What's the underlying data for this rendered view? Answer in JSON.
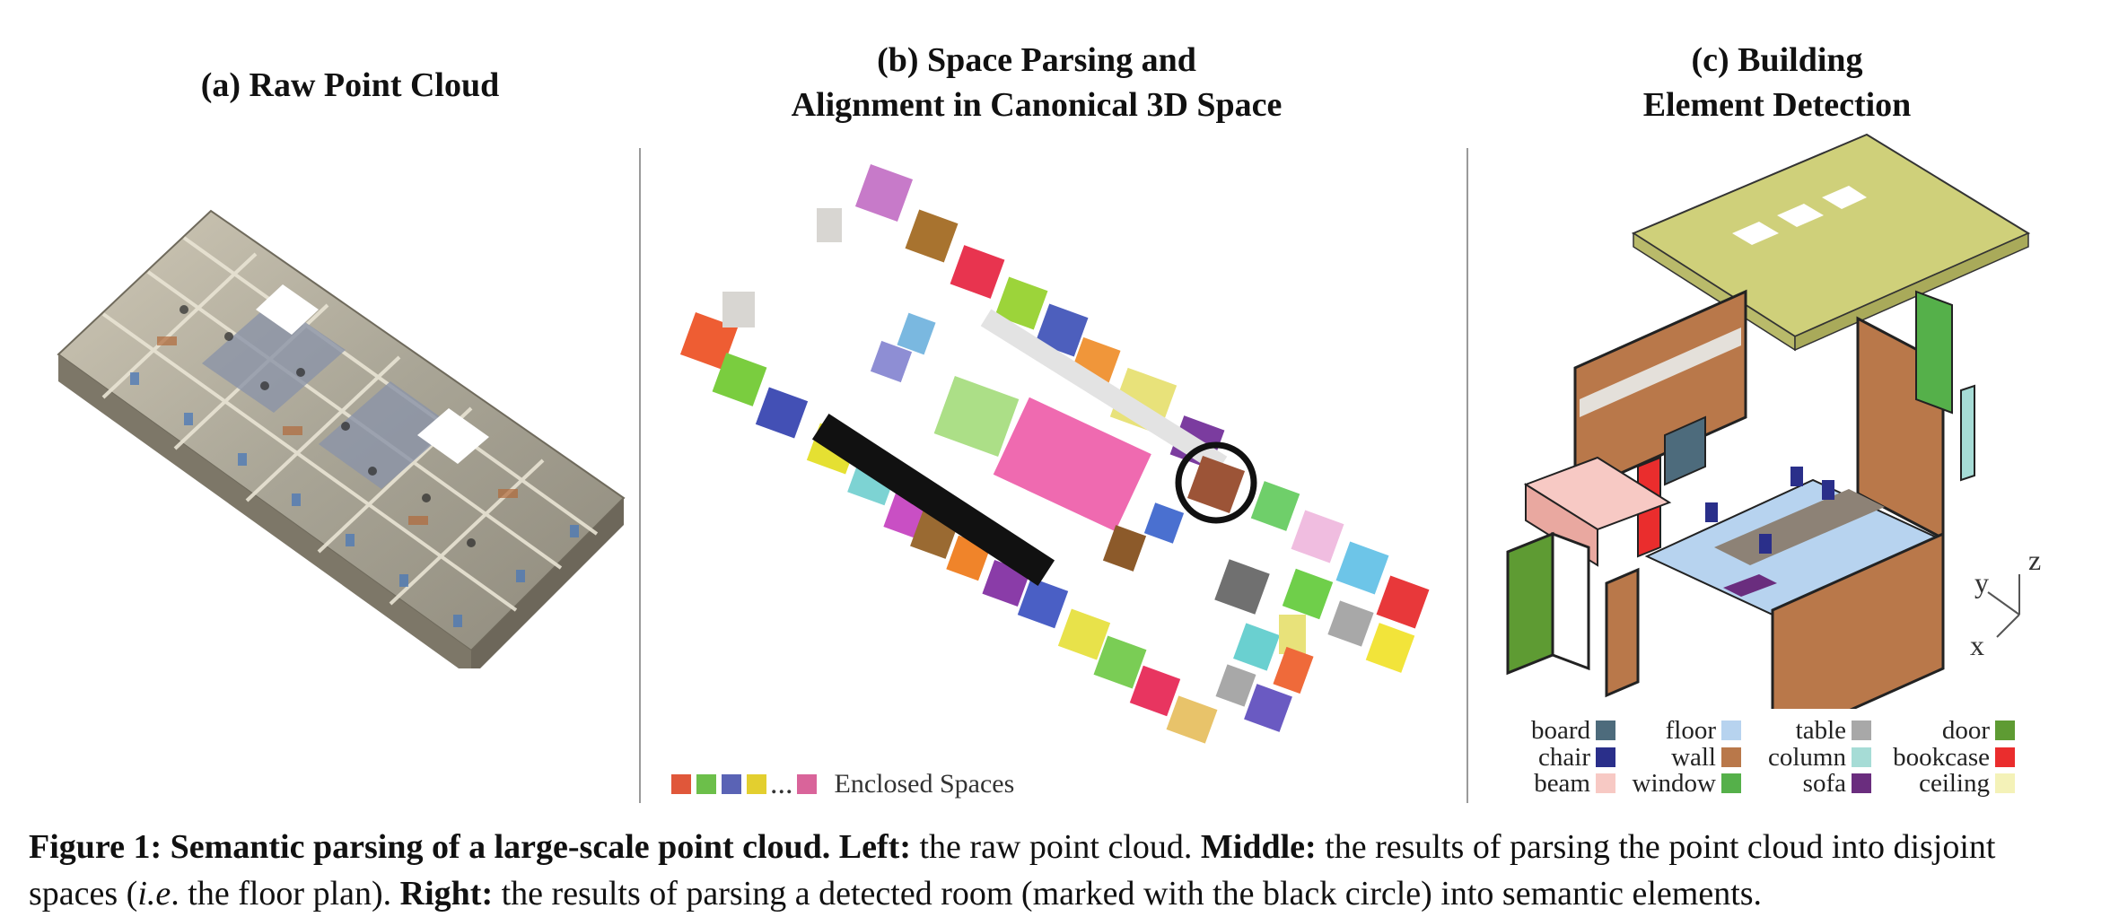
{
  "panels": {
    "a": {
      "title_line1": "(a) Raw Point Cloud"
    },
    "b": {
      "title_line1": "(b) Space Parsing and",
      "title_line2": "Alignment in Canonical 3D Space"
    },
    "c": {
      "title_line1": "(c) Building",
      "title_line2": "Element Detection"
    }
  },
  "enclosed_legend": {
    "label": "Enclosed Spaces",
    "ellipsis": "...",
    "colors": [
      "#e0573a",
      "#6cbf4a",
      "#5a63b5",
      "#e3cf2f",
      "#d9649a"
    ]
  },
  "axes": {
    "x": "x",
    "y": "y",
    "z": "z"
  },
  "element_legend": [
    {
      "label": "board",
      "color": "#4d6b7c"
    },
    {
      "label": "chair",
      "color": "#2a2f8a"
    },
    {
      "label": "beam",
      "color": "#f7c9c4"
    },
    {
      "label": "floor",
      "color": "#b7d3ef"
    },
    {
      "label": "wall",
      "color": "#b9784a"
    },
    {
      "label": "window",
      "color": "#55b04a"
    },
    {
      "label": "table",
      "color": "#a8a8a8"
    },
    {
      "label": "column",
      "color": "#a6dcd6"
    },
    {
      "label": "sofa",
      "color": "#6a2d7e"
    },
    {
      "label": "door",
      "color": "#5e9b33"
    },
    {
      "label": "bookcase",
      "color": "#ea2d2d"
    },
    {
      "label": "ceiling",
      "color": "#f4f2b8"
    }
  ],
  "caption": {
    "fig": "Figure 1: Semantic parsing of a large-scale point cloud.",
    "left_b": "Left:",
    "left": " the raw point cloud. ",
    "middle_b": "Middle:",
    "middle": " the results of parsing the point cloud into disjoint spaces (",
    "ie": "i.e",
    "middle2": ". the floor plan). ",
    "right_b": "Right:",
    "right": " the results of parsing a detected room (marked with the black circle) into semantic elements."
  }
}
